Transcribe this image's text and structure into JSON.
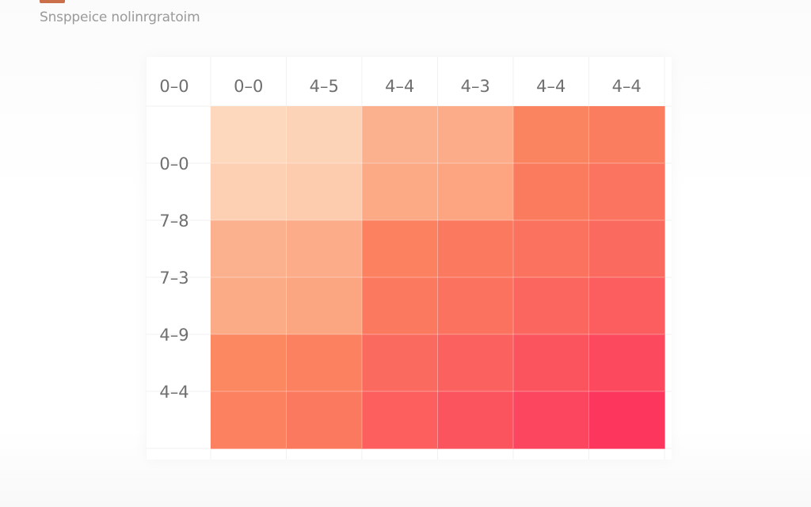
{
  "page": {
    "title": "Snsppeice nolinrgratoim"
  },
  "chart_data": {
    "type": "heatmap",
    "title": "",
    "corner_label": "0–0",
    "x_tick_labels": [
      "0–0",
      "4–5",
      "4–4",
      "4–3",
      "4–4",
      "4–4"
    ],
    "y_tick_labels": [
      "0–0",
      "7–8",
      "7–3",
      "4–9",
      "4–4",
      ""
    ],
    "color_scale": {
      "low": "#fde0c6",
      "mid": "#fb8a60",
      "high": "#fc365d"
    },
    "legend": "none",
    "grid": true,
    "values": [
      [
        0.05,
        0.08,
        0.3,
        0.33,
        0.58,
        0.62
      ],
      [
        0.1,
        0.13,
        0.35,
        0.38,
        0.63,
        0.67
      ],
      [
        0.3,
        0.33,
        0.6,
        0.64,
        0.68,
        0.72
      ],
      [
        0.34,
        0.37,
        0.64,
        0.68,
        0.74,
        0.79
      ],
      [
        0.56,
        0.6,
        0.72,
        0.77,
        0.84,
        0.9
      ],
      [
        0.6,
        0.64,
        0.78,
        0.84,
        0.92,
        1.0
      ]
    ]
  }
}
